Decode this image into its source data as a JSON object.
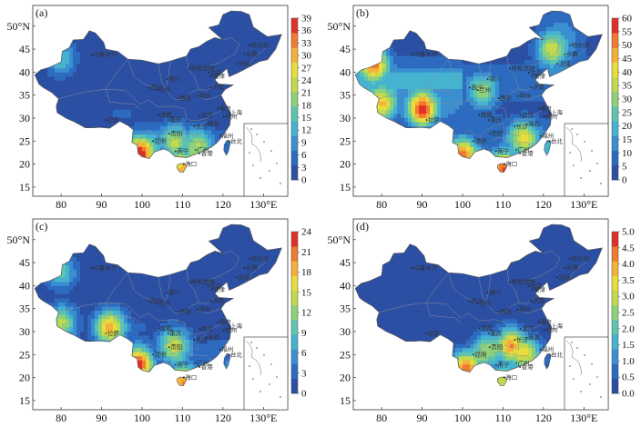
{
  "axes": {
    "lon_labels": [
      "80",
      "90",
      "100",
      "110",
      "120",
      "130°E"
    ],
    "lat_labels": [
      "50°N",
      "45",
      "40",
      "35",
      "30",
      "25",
      "20",
      "15"
    ]
  },
  "colors": {
    "scale": [
      "#2b4fa3",
      "#2c6bbf",
      "#3a8fd0",
      "#45b3cf",
      "#5ec4b0",
      "#8fd07a",
      "#c4da4e",
      "#eadc3d",
      "#f4b23a",
      "#ef7a30",
      "#e0302a"
    ],
    "border": "#8a8f96"
  },
  "panels": [
    {
      "id": "a",
      "label": "(a)",
      "colorbar_ticks": [
        "39",
        "36",
        "33",
        "30",
        "27",
        "24",
        "21",
        "18",
        "15",
        "12",
        "9",
        "6",
        "3",
        "0"
      ],
      "wetness": 0.2,
      "hotspots": [
        {
          "lon": 108,
          "lat": 25,
          "level": 0.55
        },
        {
          "lon": 101,
          "lat": 24,
          "level": 0.45
        },
        {
          "lon": 99,
          "lat": 22,
          "level": 0.9
        },
        {
          "lon": 110,
          "lat": 19,
          "level": 0.7
        },
        {
          "lon": 114,
          "lat": 24,
          "level": 0.5
        },
        {
          "lon": 80,
          "lat": 43,
          "level": 0.35
        }
      ]
    },
    {
      "id": "b",
      "label": "(b)",
      "colorbar_ticks": [
        "60",
        "55",
        "50",
        "45",
        "40",
        "35",
        "30",
        "25",
        "20",
        "15",
        "10",
        "5",
        "0"
      ],
      "wetness": 0.45,
      "hotspots": [
        {
          "lon": 90,
          "lat": 32,
          "level": 0.9
        },
        {
          "lon": 100,
          "lat": 22,
          "level": 0.85
        },
        {
          "lon": 110,
          "lat": 19,
          "level": 0.8
        },
        {
          "lon": 78,
          "lat": 42,
          "level": 0.8
        },
        {
          "lon": 115,
          "lat": 26,
          "level": 0.6
        },
        {
          "lon": 80,
          "lat": 33,
          "level": 0.7
        },
        {
          "lon": 122,
          "lat": 45,
          "level": 0.5
        },
        {
          "lon": 105,
          "lat": 36,
          "level": 0.45
        }
      ]
    },
    {
      "id": "c",
      "label": "(c)",
      "colorbar_ticks": [
        "24",
        "21",
        "18",
        "15",
        "12",
        "9",
        "6",
        "3",
        "0"
      ],
      "wetness": 0.25,
      "hotspots": [
        {
          "lon": 92,
          "lat": 31,
          "level": 0.75
        },
        {
          "lon": 99,
          "lat": 23,
          "level": 0.95
        },
        {
          "lon": 110,
          "lat": 19,
          "level": 0.75
        },
        {
          "lon": 108,
          "lat": 27,
          "level": 0.6
        },
        {
          "lon": 80,
          "lat": 32,
          "level": 0.55
        },
        {
          "lon": 80,
          "lat": 43,
          "level": 0.4
        }
      ]
    },
    {
      "id": "d",
      "label": "(d)",
      "colorbar_ticks": [
        "5.0",
        "4.5",
        "4.0",
        "3.5",
        "3.0",
        "2.5",
        "2.0",
        "1.5",
        "1.0",
        "0.5",
        "0.0"
      ],
      "wetness": 0.05,
      "hotspots": [
        {
          "lon": 112,
          "lat": 27,
          "level": 0.8
        },
        {
          "lon": 101,
          "lat": 22,
          "level": 0.9
        },
        {
          "lon": 110,
          "lat": 19,
          "level": 0.6
        },
        {
          "lon": 106,
          "lat": 26,
          "level": 0.5
        },
        {
          "lon": 116,
          "lat": 25,
          "level": 0.55
        }
      ]
    }
  ],
  "cities": [
    {
      "name": "哈尔滨",
      "lon": 126.6,
      "lat": 45.8
    },
    {
      "name": "长春",
      "lon": 125.3,
      "lat": 43.9
    },
    {
      "name": "沈阳",
      "lon": 123.4,
      "lat": 41.8
    },
    {
      "name": "北京",
      "lon": 116.4,
      "lat": 39.9
    },
    {
      "name": "天津",
      "lon": 117.2,
      "lat": 39.1
    },
    {
      "name": "呼和浩特",
      "lon": 111.7,
      "lat": 40.8
    },
    {
      "name": "银川",
      "lon": 106.2,
      "lat": 38.5
    },
    {
      "name": "兰州",
      "lon": 103.8,
      "lat": 36.1
    },
    {
      "name": "西宁",
      "lon": 101.8,
      "lat": 36.6
    },
    {
      "name": "乌鲁木齐",
      "lon": 87.6,
      "lat": 43.8
    },
    {
      "name": "拉萨",
      "lon": 91.1,
      "lat": 29.6
    },
    {
      "name": "成都",
      "lon": 104.1,
      "lat": 30.7
    },
    {
      "name": "重庆",
      "lon": 106.5,
      "lat": 29.6
    },
    {
      "name": "西安",
      "lon": 108.9,
      "lat": 34.3
    },
    {
      "name": "郑州",
      "lon": 113.6,
      "lat": 34.8
    },
    {
      "name": "济南",
      "lon": 117.0,
      "lat": 36.7
    },
    {
      "name": "武汉",
      "lon": 114.3,
      "lat": 30.6
    },
    {
      "name": "长沙",
      "lon": 112.9,
      "lat": 28.2
    },
    {
      "name": "南京",
      "lon": 118.8,
      "lat": 32.1
    },
    {
      "name": "上海",
      "lon": 121.5,
      "lat": 31.2
    },
    {
      "name": "杭州",
      "lon": 120.2,
      "lat": 30.3
    },
    {
      "name": "福州",
      "lon": 119.3,
      "lat": 26.1
    },
    {
      "name": "南昌",
      "lon": 115.9,
      "lat": 28.7
    },
    {
      "name": "贵阳",
      "lon": 106.7,
      "lat": 26.6
    },
    {
      "name": "昆明",
      "lon": 102.7,
      "lat": 25.0
    },
    {
      "name": "南宁",
      "lon": 108.3,
      "lat": 22.8
    },
    {
      "name": "广州",
      "lon": 113.3,
      "lat": 23.1
    },
    {
      "name": "海口",
      "lon": 110.3,
      "lat": 20.0
    },
    {
      "name": "台北",
      "lon": 121.5,
      "lat": 25.0
    },
    {
      "name": "香港",
      "lon": 114.2,
      "lat": 22.3
    }
  ]
}
